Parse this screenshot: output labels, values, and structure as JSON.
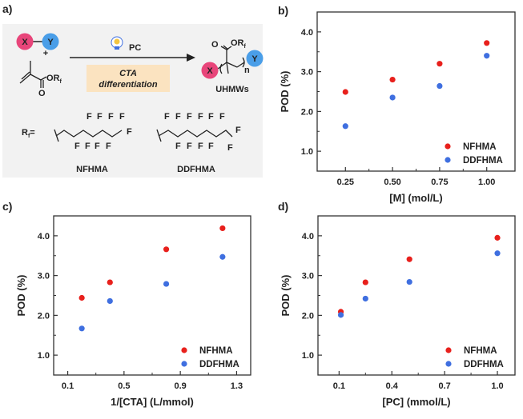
{
  "panel_labels": {
    "a": "a)",
    "b": "b)",
    "c": "c)",
    "d": "d)"
  },
  "scheme": {
    "x_label": "X",
    "y_label": "Y",
    "plus": "+",
    "monomer_group": "OR",
    "monomer_subscript": "f",
    "carbonyl_o": "O",
    "catalyst": "PC",
    "box_line1": "CTA",
    "box_line2": "differentiation",
    "product_group": "OR",
    "product_subscript": "f",
    "product_carbonyl_o": "O",
    "repeat_n": "n",
    "product_label": "UHMWs",
    "rf_label": "R",
    "rf_subscript": "f",
    "rf_equals": "=",
    "atom_label": "F",
    "structure1_name": "NFHMA",
    "structure2_name": "DDFHMA",
    "colors": {
      "x": "#e8457a",
      "y": "#4a9ee8",
      "box": "#fbe3c0",
      "panel_bg": "#f2f2f2"
    }
  },
  "series_colors": {
    "NFHMA": "#e8201c",
    "DDFHMA": "#3f6fe0"
  },
  "chart_data": [
    {
      "panel": "b",
      "type": "scatter",
      "xlabel": "[M] (mol/L)",
      "ylabel": "POD (%)",
      "xlim": [
        0.1,
        1.15
      ],
      "ylim": [
        0.5,
        4.5
      ],
      "xticks": [
        "0.25",
        "0.50",
        "0.75",
        "1.00"
      ],
      "yticks": [
        "1.0",
        "2.0",
        "3.0",
        "4.0"
      ],
      "legend": "bottom-right",
      "grid": false,
      "x": [
        0.25,
        0.5,
        0.75,
        1.0
      ],
      "series": [
        {
          "name": "NFHMA",
          "values": [
            2.49,
            2.8,
            3.2,
            3.72
          ]
        },
        {
          "name": "DDFHMA",
          "values": [
            1.63,
            2.35,
            2.64,
            3.4
          ]
        }
      ]
    },
    {
      "panel": "c",
      "type": "scatter",
      "xlabel": "1/[CTA] (L/mmol)",
      "ylabel": "POD (%)",
      "xlim": [
        0.0,
        1.4
      ],
      "ylim": [
        0.5,
        4.5
      ],
      "xticks": [
        "0.1",
        "0.5",
        "0.9",
        "1.3"
      ],
      "yticks": [
        "1.0",
        "2.0",
        "3.0",
        "4.0"
      ],
      "legend": "bottom-right",
      "grid": false,
      "x": [
        0.2,
        0.4,
        0.8,
        1.2
      ],
      "series": [
        {
          "name": "NFHMA",
          "values": [
            2.44,
            2.83,
            3.66,
            4.19
          ]
        },
        {
          "name": "DDFHMA",
          "values": [
            1.67,
            2.36,
            2.79,
            3.47
          ]
        }
      ]
    },
    {
      "panel": "d",
      "type": "scatter",
      "xlabel": "[PC] (mmol/L)",
      "ylabel": "POD (%)",
      "xlim": [
        -0.02,
        1.1
      ],
      "ylim": [
        0.5,
        4.5
      ],
      "xticks": [
        "0.1",
        "0.4",
        "0.7",
        "1.0"
      ],
      "yticks": [
        "1.0",
        "2.0",
        "3.0",
        "4.0"
      ],
      "legend": "bottom-right",
      "grid": false,
      "x": [
        0.11,
        0.25,
        0.5,
        1.0
      ],
      "series": [
        {
          "name": "NFHMA",
          "values": [
            2.09,
            2.83,
            3.41,
            3.95
          ]
        },
        {
          "name": "DDFHMA",
          "values": [
            2.01,
            2.42,
            2.84,
            3.56
          ]
        }
      ]
    }
  ]
}
